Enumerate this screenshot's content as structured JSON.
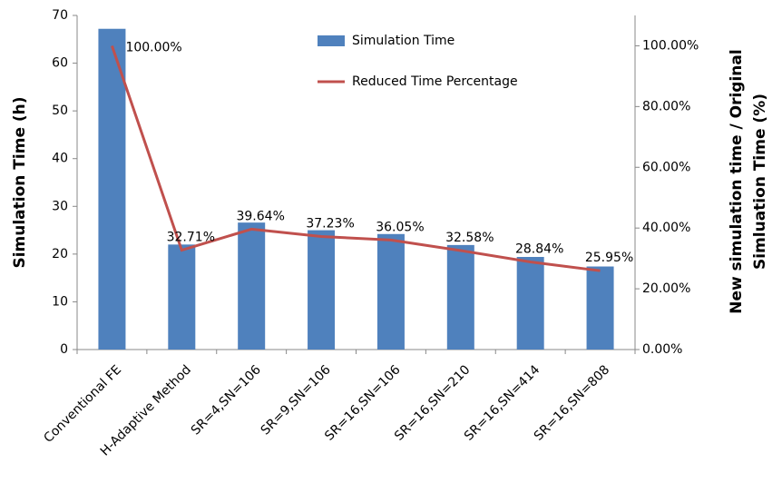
{
  "chart_data": {
    "type": "bar",
    "ylabel": "Simulation Time (h)",
    "y2label": [
      "New simulation time  / Original",
      "Simluation Time (%)"
    ],
    "categories": [
      "Conventional FE",
      "H-Adaptive Method",
      "SR=4,SN=106",
      "SR=9,SN=106",
      "SR=16,SN=106",
      "SR=16,SN=210",
      "SR=16,SN=414",
      "SR=16,SN=808"
    ],
    "series": [
      {
        "name": "Simulation Time",
        "color": "#4f81bd",
        "type": "bar",
        "values": [
          67.2,
          22.0,
          26.6,
          25.0,
          24.2,
          21.9,
          19.4,
          17.4
        ]
      },
      {
        "name": "Reduced Time Percentage",
        "color": "#c0504d",
        "type": "line",
        "axis": "y2",
        "values": [
          100,
          32.71,
          39.64,
          37.23,
          36.05,
          32.58,
          28.84,
          25.95
        ],
        "value_labels": [
          "100.00%",
          "32.71%",
          "39.64%",
          "37.23%",
          "36.05%",
          "32.58%",
          "28.84%",
          "25.95%"
        ]
      }
    ],
    "ylim": [
      0,
      70
    ],
    "yticks": [
      0,
      10,
      20,
      30,
      40,
      50,
      60,
      70
    ],
    "y2lim": [
      0,
      110
    ],
    "y2ticks": [
      {
        "value": 0,
        "label": "0.00%"
      },
      {
        "value": 20,
        "label": "20.00%"
      },
      {
        "value": 40,
        "label": "40.00%"
      },
      {
        "value": 60,
        "label": "60.00%"
      },
      {
        "value": 80,
        "label": "80.00%"
      },
      {
        "value": 100,
        "label": "100.00%"
      }
    ],
    "legend": "top"
  }
}
